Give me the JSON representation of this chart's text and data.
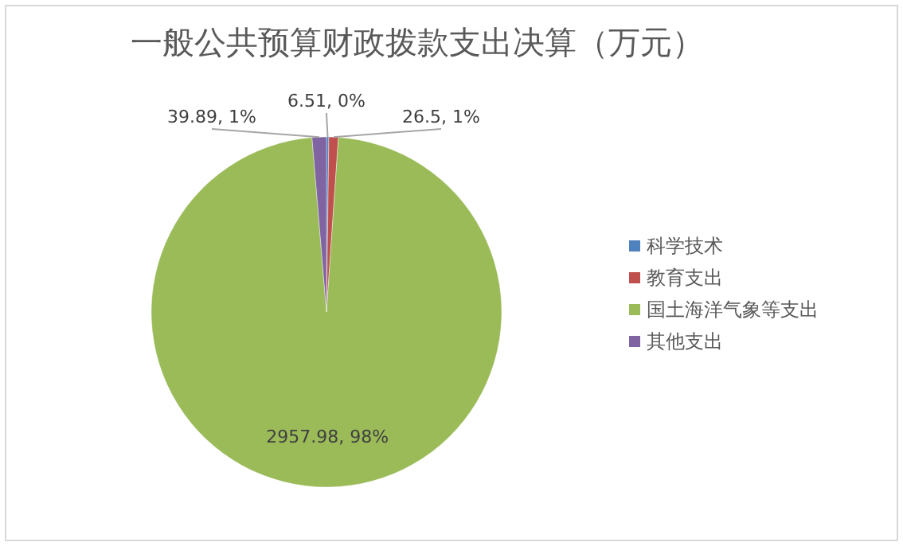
{
  "chart_data": {
    "type": "pie",
    "title": "一般公共预算财政拨款支出决算（万元）",
    "categories": [
      "科学技术",
      "教育支出",
      "国土海洋气象等支出",
      "其他支出"
    ],
    "values": [
      6.51,
      26.5,
      2957.98,
      39.89
    ],
    "colors": [
      "#4f81bd",
      "#c0504d",
      "#9bbb59",
      "#8064a2"
    ],
    "value_labels": [
      "6.51, 0%",
      "26.5, 1%",
      "2957.98, 98%",
      "39.89, 1%"
    ],
    "legend": "right"
  }
}
